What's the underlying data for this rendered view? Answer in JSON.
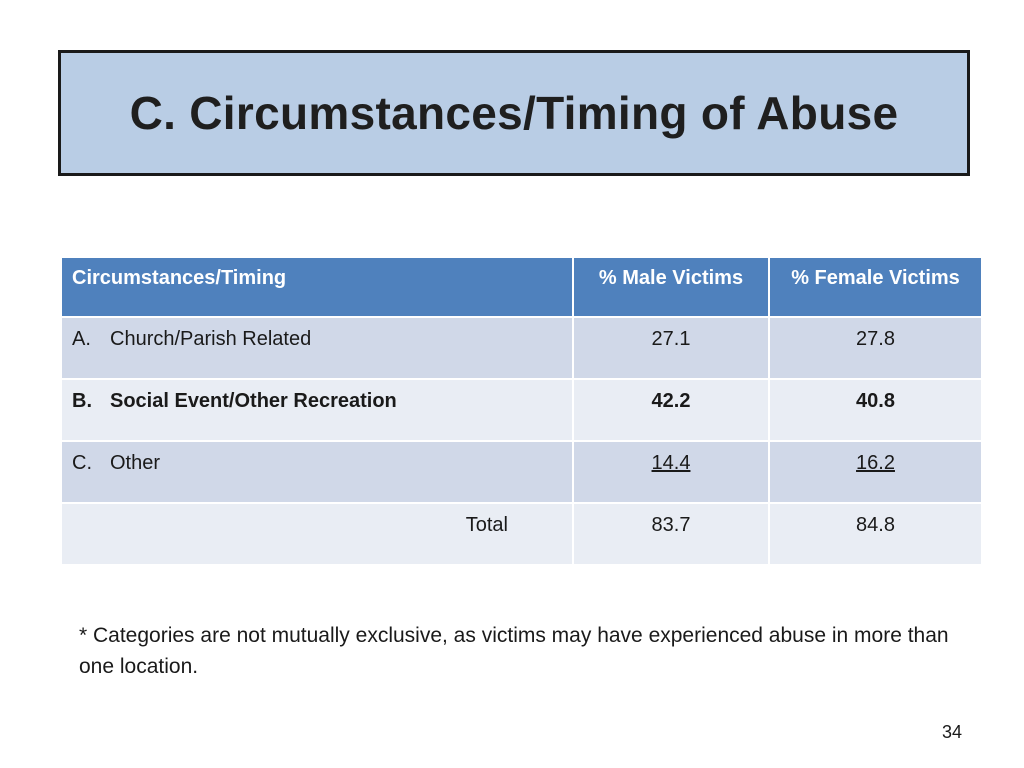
{
  "slide": {
    "title": "C. Circumstances/Timing of Abuse",
    "page_number": "34"
  },
  "table": {
    "headers": [
      "Circumstances/Timing",
      "% Male Victims",
      "% Female Victims"
    ],
    "rows": [
      {
        "letter": "A.",
        "label": "Church/Parish Related",
        "male": "27.1",
        "female": "27.8"
      },
      {
        "letter": "B.",
        "label": "Social Event/Other Recreation",
        "male": "42.2",
        "female": "40.8"
      },
      {
        "letter": "C.",
        "label": "Other",
        "male": "14.4",
        "female": "16.2"
      }
    ],
    "total": {
      "label": "Total",
      "male": "83.7",
      "female": "84.8"
    }
  },
  "footnote": "* Categories are not mutually exclusive, as victims may have experienced abuse in more than one location."
}
